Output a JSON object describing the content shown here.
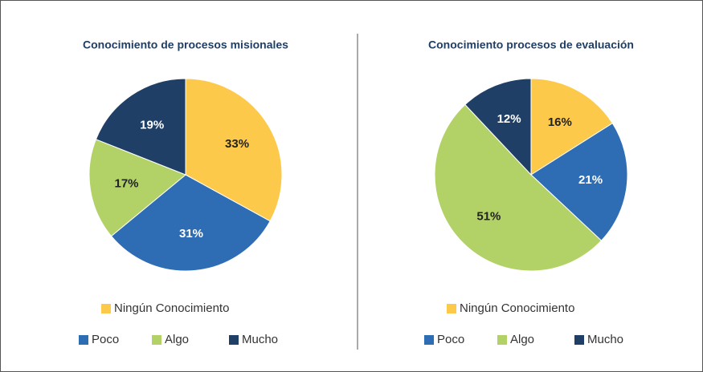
{
  "chart_data": [
    {
      "type": "pie",
      "title": "Conocimiento de procesos misionales",
      "categories": [
        "Ningún Conocimiento",
        "Poco",
        "Algo",
        "Mucho"
      ],
      "values": [
        33,
        31,
        17,
        19
      ],
      "value_labels": [
        "33%",
        "31%",
        "17%",
        "19%"
      ],
      "colors": [
        "#fdc94a",
        "#2e6db4",
        "#b2d166",
        "#1f3f66"
      ]
    },
    {
      "type": "pie",
      "title": "Conocimiento procesos de evaluación",
      "categories": [
        "Ningún Conocimiento",
        "Poco",
        "Algo",
        "Mucho"
      ],
      "values": [
        16,
        21,
        51,
        12
      ],
      "value_labels": [
        "16%",
        "21%",
        "51%",
        "12%"
      ],
      "colors": [
        "#fdc94a",
        "#2e6db4",
        "#b2d166",
        "#1f3f66"
      ]
    }
  ]
}
